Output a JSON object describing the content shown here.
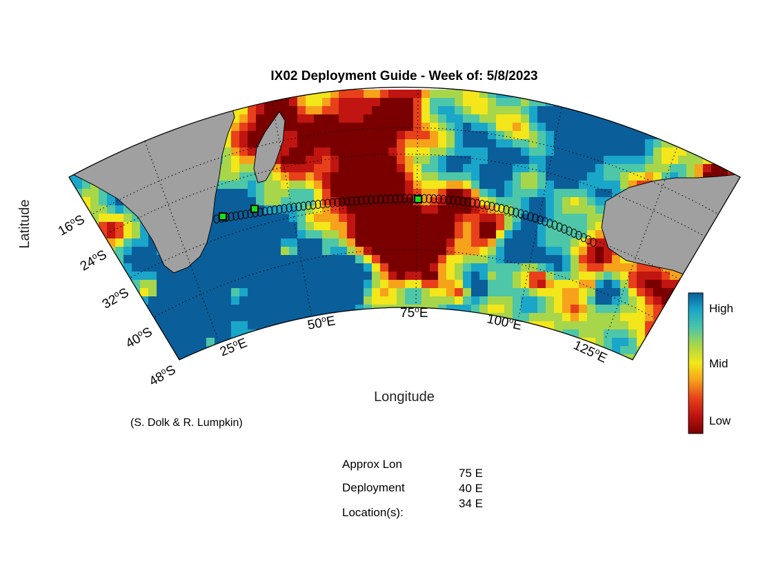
{
  "title": "IX02 Deployment Guide - Week of: 5/8/2023",
  "xlabel": "Longitude",
  "ylabel": "Latitude",
  "credit": "(S. Dolk & R. Lumpkin)",
  "lat_ticks": [
    {
      "base": "16",
      "deg": "o",
      "hemi": "S"
    },
    {
      "base": "24",
      "deg": "o",
      "hemi": "S"
    },
    {
      "base": "32",
      "deg": "o",
      "hemi": "S"
    },
    {
      "base": "40",
      "deg": "o",
      "hemi": "S"
    },
    {
      "base": "48",
      "deg": "o",
      "hemi": "S"
    }
  ],
  "lon_ticks": [
    {
      "base": "25",
      "deg": "o",
      "hemi": "E"
    },
    {
      "base": "50",
      "deg": "o",
      "hemi": "E"
    },
    {
      "base": "75",
      "deg": "o",
      "hemi": "E"
    },
    {
      "base": "100",
      "deg": "o",
      "hemi": "E"
    },
    {
      "base": "125",
      "deg": "o",
      "hemi": "E"
    }
  ],
  "colorbar": {
    "labels": [
      "High",
      "Mid",
      "Low"
    ],
    "colors": [
      "#0a5f9a",
      "#1aa6c9",
      "#4ec6a8",
      "#a8d64a",
      "#f3e61a",
      "#f6a21b",
      "#e8401a",
      "#c01510",
      "#7a0000"
    ]
  },
  "deployment": {
    "label_lines": [
      "Approx Lon",
      "Deployment",
      "Location(s):"
    ],
    "locations": [
      "75 E",
      "40 E",
      "34 E"
    ],
    "marker_color": "#16e01a"
  },
  "land_color": "#a0a0a0"
}
